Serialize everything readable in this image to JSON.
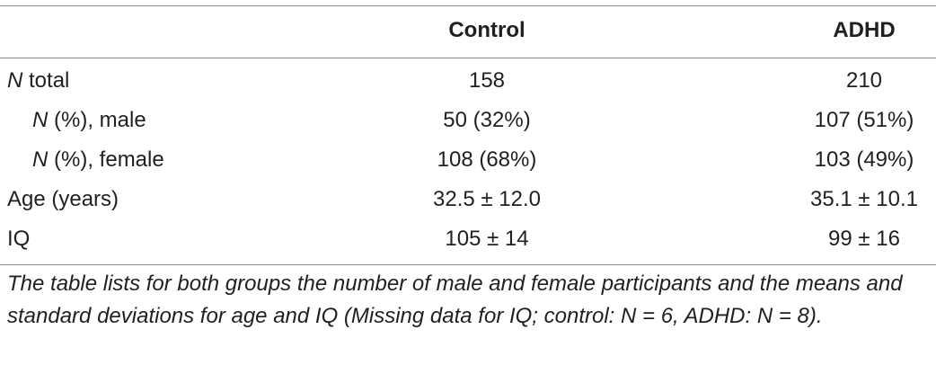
{
  "table": {
    "headers": {
      "control": "Control",
      "adhd": "ADHD"
    },
    "rows": [
      {
        "label_italic": "N",
        "label_rest": " total",
        "indent": false,
        "control": "158",
        "adhd": "210"
      },
      {
        "label_italic": "N",
        "label_rest": " (%), male",
        "indent": true,
        "control": "50 (32%)",
        "adhd": "107 (51%)"
      },
      {
        "label_italic": "N",
        "label_rest": " (%), female",
        "indent": true,
        "control": "108 (68%)",
        "adhd": "103 (49%)"
      },
      {
        "label_italic": "",
        "label_rest": "Age (years)",
        "indent": false,
        "control": "32.5 ± 12.0",
        "adhd": "35.1 ± 10.1"
      },
      {
        "label_italic": "",
        "label_rest": "IQ",
        "indent": false,
        "control": "105 ± 14",
        "adhd": "99 ± 16"
      }
    ],
    "caption": "The table lists for both groups the number of male and female participants and the means and standard deviations for age and IQ (Missing data for IQ; control: N = 6, ADHD: N = 8)."
  }
}
